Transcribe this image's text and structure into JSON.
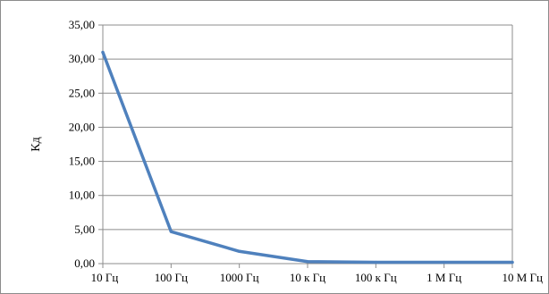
{
  "chart_data": {
    "type": "line",
    "title": "",
    "xlabel": "",
    "ylabel": "Кд",
    "categories": [
      "10 Гц",
      "100 Гц",
      "1000 Гц",
      "10 к Гц",
      "100 к Гц",
      "1 М Гц",
      "10 М Гц"
    ],
    "series": [
      {
        "values": [
          31.0,
          4.7,
          1.8,
          0.3,
          0.2,
          0.2,
          0.2
        ]
      }
    ],
    "ylim": [
      0,
      35
    ],
    "yticks": [
      "0,00",
      "5,00",
      "10,00",
      "15,00",
      "20,00",
      "25,00",
      "30,00",
      "35,00"
    ],
    "grid": true,
    "legend": "none"
  },
  "colors": {
    "line": "#4f81bd",
    "grid": "#8c8c8c",
    "frame": "#8c8c8c",
    "text": "#000000"
  }
}
